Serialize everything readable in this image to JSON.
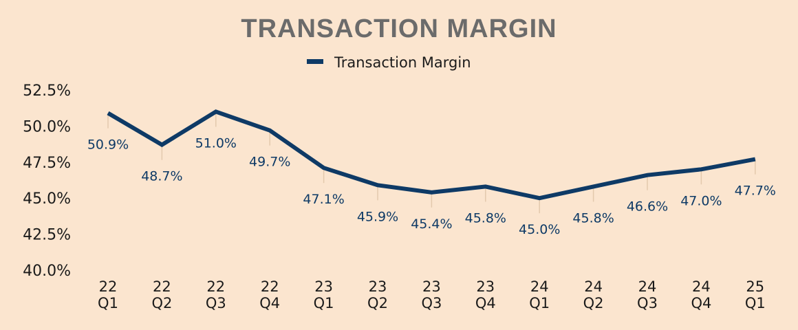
{
  "colors": {
    "background": "#fbe5cf",
    "series": "#0e3a66",
    "title": "#6b6b6b",
    "guide": "#e3c9ad"
  },
  "chart_data": {
    "type": "line",
    "title": "TRANSACTION MARGIN",
    "xlabel": "",
    "ylabel": "",
    "legend_position": "top-center",
    "grid": false,
    "categories": [
      [
        "22",
        "Q1"
      ],
      [
        "22",
        "Q2"
      ],
      [
        "22",
        "Q3"
      ],
      [
        "22",
        "Q4"
      ],
      [
        "23",
        "Q1"
      ],
      [
        "23",
        "Q2"
      ],
      [
        "23",
        "Q3"
      ],
      [
        "23",
        "Q4"
      ],
      [
        "24",
        "Q1"
      ],
      [
        "24",
        "Q2"
      ],
      [
        "24",
        "Q3"
      ],
      [
        "24",
        "Q4"
      ],
      [
        "25",
        "Q1"
      ]
    ],
    "series": [
      {
        "name": "Transaction Margin",
        "values": [
          50.9,
          48.7,
          51.0,
          49.7,
          47.1,
          45.9,
          45.4,
          45.8,
          45.0,
          45.8,
          46.6,
          47.0,
          47.7
        ],
        "labels": [
          "50.9%",
          "48.7%",
          "51.0%",
          "49.7%",
          "47.1%",
          "45.9%",
          "45.4%",
          "45.8%",
          "45.0%",
          "45.8%",
          "46.6%",
          "47.0%",
          "47.7%"
        ]
      }
    ],
    "ylim": [
      40.0,
      52.5
    ],
    "yticks": [
      40.0,
      42.5,
      45.0,
      47.5,
      50.0,
      52.5
    ],
    "ytick_labels": [
      "40.0%",
      "42.5%",
      "45.0%",
      "47.5%",
      "50.0%",
      "52.5%"
    ]
  }
}
